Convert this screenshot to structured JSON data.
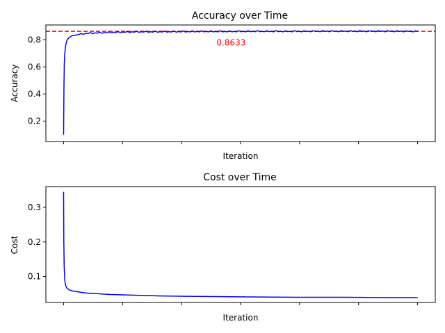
{
  "colors": {
    "line": "#0000ff",
    "reference": "#ff0000",
    "axes": "#000000",
    "background": "#ffffff"
  },
  "chart_data": [
    {
      "type": "line",
      "title": "Accuracy over Time",
      "xlabel": "Iteration",
      "ylabel": "Accuracy",
      "x_tick_labels_visible": false,
      "xlim": [
        -0.15,
        3.15
      ],
      "ylim": [
        0.05,
        0.91
      ],
      "yticks": [
        0.2,
        0.4,
        0.6,
        0.8
      ],
      "ytick_labels": [
        "0.2",
        "0.4",
        "0.6",
        "0.8"
      ],
      "grid": false,
      "reference_line": {
        "y": 0.8633,
        "style": "dashed",
        "color": "#ff0000"
      },
      "annotation": {
        "text": "0.8633",
        "x": 1.42,
        "y": 0.76,
        "color": "#ff0000"
      },
      "series": [
        {
          "color": "#0000ff",
          "x": [
            0,
            0.003,
            0.006,
            0.01,
            0.015,
            0.02,
            0.03,
            0.04,
            0.05,
            0.07,
            0.1,
            0.15,
            0.2,
            0.3,
            0.4,
            0.5,
            0.6,
            0.8,
            1.0,
            1.2,
            1.4,
            1.6,
            1.8,
            2.0,
            2.2,
            2.4,
            2.6,
            2.8,
            3.0
          ],
          "y": [
            0.1,
            0.45,
            0.62,
            0.7,
            0.74,
            0.77,
            0.8,
            0.81,
            0.82,
            0.83,
            0.835,
            0.843,
            0.848,
            0.852,
            0.855,
            0.857,
            0.859,
            0.86,
            0.861,
            0.862,
            0.862,
            0.863,
            0.863,
            0.863,
            0.864,
            0.864,
            0.864,
            0.864,
            0.863
          ],
          "noise": 0.004
        }
      ]
    },
    {
      "type": "line",
      "title": "Cost over Time",
      "xlabel": "Iteration",
      "ylabel": "Cost",
      "x_tick_labels_visible": false,
      "xlim": [
        -0.15,
        3.15
      ],
      "ylim": [
        0.025,
        0.36
      ],
      "yticks": [
        0.1,
        0.2,
        0.3
      ],
      "ytick_labels": [
        "0.1",
        "0.2",
        "0.3"
      ],
      "grid": false,
      "series": [
        {
          "color": "#0000ff",
          "x": [
            0,
            0.002,
            0.005,
            0.01,
            0.015,
            0.02,
            0.03,
            0.05,
            0.08,
            0.1,
            0.15,
            0.2,
            0.3,
            0.4,
            0.6,
            0.8,
            1.0,
            1.3,
            1.6,
            2.0,
            2.4,
            2.8,
            3.0
          ],
          "y": [
            0.345,
            0.2,
            0.13,
            0.09,
            0.078,
            0.072,
            0.066,
            0.061,
            0.058,
            0.057,
            0.054,
            0.052,
            0.05,
            0.048,
            0.046,
            0.044,
            0.043,
            0.042,
            0.041,
            0.04,
            0.04,
            0.039,
            0.039
          ],
          "noise": 0
        }
      ]
    }
  ]
}
